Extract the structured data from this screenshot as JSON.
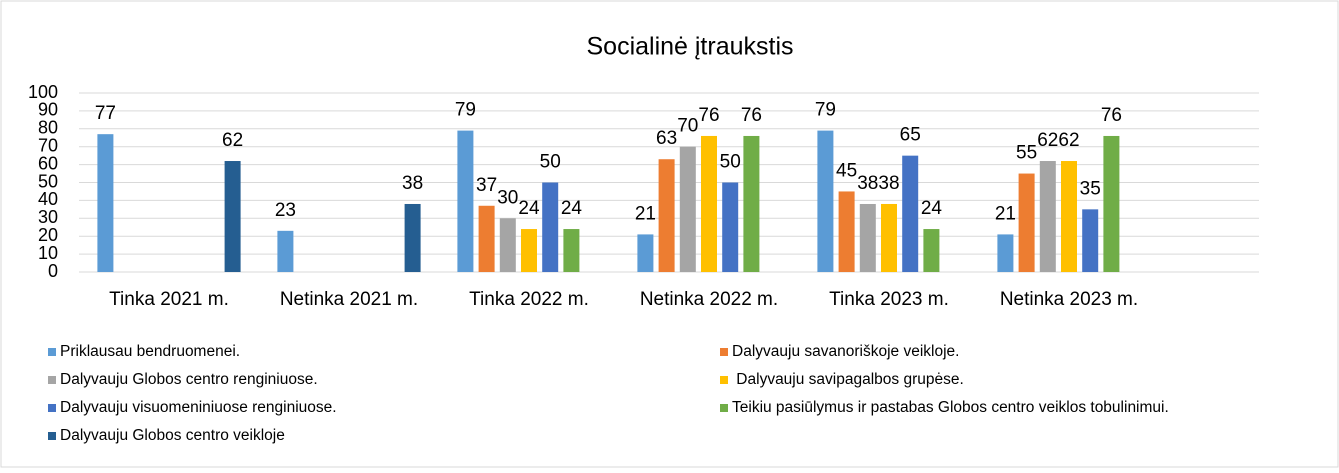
{
  "chart_data": {
    "type": "bar",
    "title": "Socialinė įtraukstis",
    "categories": [
      "Tinka 2021 m.",
      "Netinka 2021 m.",
      "Tinka 2022 m.",
      "Netinka 2022 m.",
      "Tinka 2023 m.",
      "Netinka 2023 m."
    ],
    "series": [
      {
        "name": "Priklausau bendruomenei.",
        "color": "#5b9bd5",
        "values": [
          77,
          23,
          79,
          21,
          79,
          21
        ]
      },
      {
        "name": "Dalyvauju savanoriškoje veikloje.",
        "color": "#ed7d31",
        "values": [
          null,
          null,
          37,
          63,
          45,
          55
        ]
      },
      {
        "name": "Dalyvauju Globos centro renginiuose.",
        "color": "#a5a5a5",
        "values": [
          null,
          null,
          30,
          70,
          38,
          62
        ]
      },
      {
        "name": " Dalyvauju savipagalbos grupėse.",
        "color": "#ffc000",
        "values": [
          null,
          null,
          24,
          76,
          38,
          62
        ]
      },
      {
        "name": "Dalyvauju visuomeniniuose renginiuose.",
        "color": "#4472c4",
        "values": [
          null,
          null,
          50,
          50,
          65,
          35
        ]
      },
      {
        "name": "Teikiu pasiūlymus ir pastabas Globos centro veiklos tobulinimui.",
        "color": "#70ad47",
        "values": [
          null,
          null,
          24,
          76,
          24,
          76
        ]
      },
      {
        "name": "Dalyvauju Globos centro veikloje",
        "color": "#255e91",
        "values": [
          62,
          38,
          null,
          null,
          null,
          null
        ]
      }
    ],
    "ylim": [
      0,
      100
    ],
    "yticks": [
      0,
      10,
      20,
      30,
      40,
      50,
      60,
      70,
      80,
      90,
      100
    ],
    "grid": true,
    "legend": "bottom"
  }
}
